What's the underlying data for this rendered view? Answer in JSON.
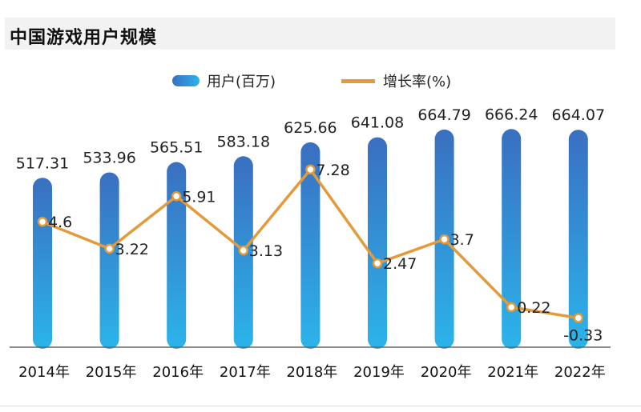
{
  "header": {
    "title": "中国游戏用户规模"
  },
  "chart_data": {
    "type": "bar",
    "title": "中国游戏用户规模",
    "categories": [
      "2014年",
      "2015年",
      "2016年",
      "2017年",
      "2018年",
      "2019年",
      "2020年",
      "2021年",
      "2022年"
    ],
    "series": [
      {
        "name": "用户(百万)",
        "kind": "bar",
        "axis": "left",
        "values": [
          517.31,
          533.96,
          565.51,
          583.18,
          625.66,
          641.08,
          664.79,
          666.24,
          664.07
        ],
        "labels": [
          "517.31",
          "533.96",
          "565.51",
          "583.18",
          "625.66",
          "641.08",
          "664.79",
          "666.24",
          "664.07"
        ],
        "color_top": "#3a6fc0",
        "color_bottom": "#2bb4ea"
      },
      {
        "name": "增长率(%)",
        "kind": "line",
        "axis": "right",
        "values": [
          4.6,
          3.22,
          5.91,
          3.13,
          7.28,
          2.47,
          3.7,
          0.22,
          -0.33
        ],
        "labels": [
          "4.6",
          "3.22",
          "5.91",
          "3.13",
          "7.28",
          "2.47",
          "3.7",
          "0.22",
          "-0.33"
        ],
        "color": "#e29a3a"
      }
    ],
    "ylim": [
      0,
      700
    ],
    "y2lim": [
      -2.5,
      8.5
    ],
    "legend": "top-center",
    "grid": false
  }
}
